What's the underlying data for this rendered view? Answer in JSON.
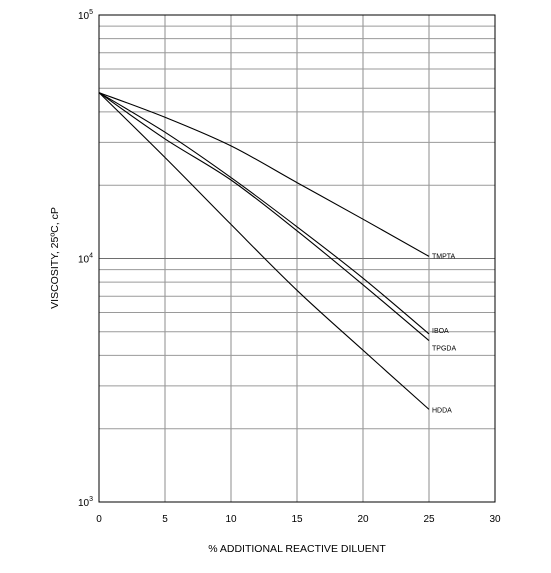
{
  "chart_data": {
    "type": "line",
    "title": "",
    "xlabel": "% ADDITIONAL REACTIVE DILUENT",
    "ylabel": "VISCOSITY, 25ºC, cP",
    "xlim": [
      0,
      30
    ],
    "ylim": [
      1000,
      100000
    ],
    "yscale": "log",
    "grid": true,
    "legend": "none (series labelled at line ends)",
    "x_ticks": [
      "0",
      "5",
      "10",
      "15",
      "20",
      "25",
      "30"
    ],
    "y_ticks": [
      {
        "value": 1000,
        "base": "10",
        "exp": "3"
      },
      {
        "value": 10000,
        "base": "10",
        "exp": "4"
      },
      {
        "value": 100000,
        "base": "10",
        "exp": "5"
      }
    ],
    "series": [
      {
        "name": "TMPTA",
        "x": [
          0,
          5,
          10,
          15,
          20,
          25
        ],
        "y": [
          48000,
          38000,
          29000,
          20500,
          14500,
          10200
        ]
      },
      {
        "name": "IBOA",
        "x": [
          0,
          5,
          10,
          15,
          20,
          25
        ],
        "y": [
          48000,
          33000,
          21500,
          13500,
          8300,
          4900
        ]
      },
      {
        "name": "TPGDA",
        "x": [
          0,
          5,
          10,
          15,
          20,
          25
        ],
        "y": [
          48000,
          31000,
          21000,
          13000,
          7800,
          4600
        ]
      },
      {
        "name": "HDDA",
        "x": [
          0,
          5,
          10,
          15,
          20,
          25
        ],
        "y": [
          48000,
          26000,
          13800,
          7400,
          4200,
          2400
        ]
      }
    ]
  }
}
